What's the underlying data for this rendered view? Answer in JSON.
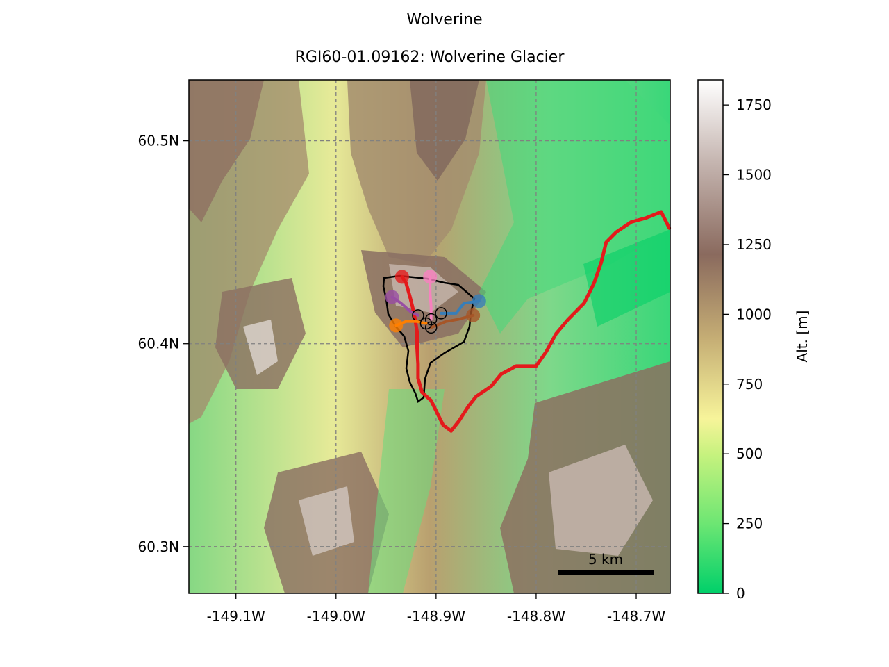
{
  "figure": {
    "title": "Wolverine"
  },
  "map": {
    "title": "RGI60-01.09162: Wolverine Glacier",
    "lon_range": [
      -149.147,
      -148.666
    ],
    "lat_range": [
      60.277,
      60.53
    ],
    "lon_ticks": [
      {
        "value": -149.1,
        "label": "-149.1W"
      },
      {
        "value": -149.0,
        "label": "-149.0W"
      },
      {
        "value": -148.9,
        "label": "-148.9W"
      },
      {
        "value": -148.8,
        "label": "-148.8W"
      },
      {
        "value": -148.7,
        "label": "-148.7W"
      }
    ],
    "lat_ticks": [
      {
        "value": 60.5,
        "label": "60.5N"
      },
      {
        "value": 60.4,
        "label": "60.4N"
      },
      {
        "value": 60.3,
        "label": "60.3N"
      }
    ],
    "grid": true,
    "scalebar": {
      "label": "5 km",
      "length_km": 5,
      "placement": "bottom-right"
    },
    "glacier_outline_color": "#000000",
    "flowlines": [
      {
        "color": "#e41a1c",
        "main": true,
        "points": [
          [
            -148.934,
            60.433
          ],
          [
            -148.93,
            60.43
          ],
          [
            -148.926,
            60.423
          ],
          [
            -148.922,
            60.415
          ],
          [
            -148.919,
            60.406
          ],
          [
            -148.919,
            60.398
          ],
          [
            -148.918,
            60.39
          ],
          [
            -148.918,
            60.383
          ],
          [
            -148.914,
            60.376
          ],
          [
            -148.905,
            60.372
          ],
          [
            -148.898,
            60.365
          ],
          [
            -148.893,
            60.36
          ],
          [
            -148.885,
            60.357
          ],
          [
            -148.877,
            60.362
          ],
          [
            -148.868,
            60.369
          ],
          [
            -148.86,
            60.374
          ],
          [
            -148.845,
            60.379
          ],
          [
            -148.835,
            60.385
          ],
          [
            -148.82,
            60.389
          ],
          [
            -148.8,
            60.389
          ],
          [
            -148.79,
            60.396
          ],
          [
            -148.78,
            60.405
          ],
          [
            -148.768,
            60.412
          ],
          [
            -148.752,
            60.42
          ],
          [
            -148.742,
            60.43
          ],
          [
            -148.735,
            60.44
          ],
          [
            -148.73,
            60.45
          ],
          [
            -148.72,
            60.455
          ],
          [
            -148.705,
            60.46
          ],
          [
            -148.69,
            60.462
          ],
          [
            -148.675,
            60.465
          ],
          [
            -148.667,
            60.457
          ]
        ]
      },
      {
        "color": "#f781bf",
        "points": [
          [
            -148.906,
            60.433
          ],
          [
            -148.906,
            60.425
          ],
          [
            -148.905,
            60.418
          ],
          [
            -148.905,
            60.412
          ]
        ]
      },
      {
        "color": "#984ea3",
        "points": [
          [
            -148.944,
            60.423
          ],
          [
            -148.935,
            60.42
          ],
          [
            -148.926,
            60.416
          ],
          [
            -148.918,
            60.414
          ]
        ]
      },
      {
        "color": "#377eb8",
        "points": [
          [
            -148.857,
            60.421
          ],
          [
            -148.872,
            60.42
          ],
          [
            -148.88,
            60.415
          ],
          [
            -148.895,
            60.415
          ]
        ]
      },
      {
        "color": "#a65628",
        "points": [
          [
            -148.863,
            60.414
          ],
          [
            -148.878,
            60.412
          ],
          [
            -148.89,
            60.411
          ],
          [
            -148.905,
            60.408
          ]
        ]
      },
      {
        "color": "#ff7f00",
        "points": [
          [
            -148.94,
            60.409
          ],
          [
            -148.93,
            60.411
          ],
          [
            -148.92,
            60.411
          ],
          [
            -148.91,
            60.41
          ]
        ]
      }
    ]
  },
  "colorbar": {
    "label": "Alt. [m]",
    "ticks": [
      0,
      250,
      500,
      750,
      1000,
      1250,
      1500,
      1750
    ],
    "range": [
      0,
      1840
    ],
    "colors": [
      "#00d06a",
      "#6de673",
      "#c6f27e",
      "#f7f49a",
      "#c4ac74",
      "#8a6a5e",
      "#c5b5b0",
      "#ffffff"
    ]
  }
}
